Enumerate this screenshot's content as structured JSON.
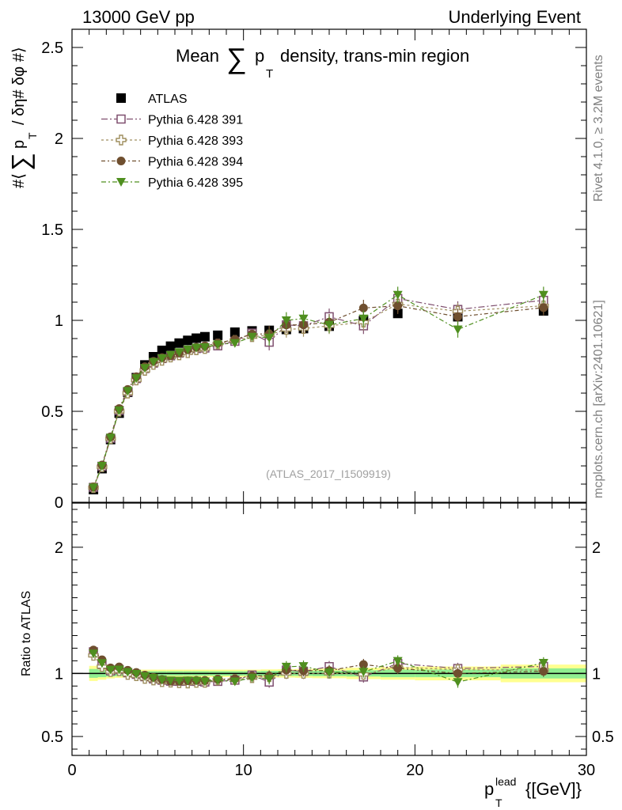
{
  "header": {
    "energy": "13000 GeV pp",
    "process": "Underlying Event",
    "plot_title_prefix": "Mean",
    "plot_title_sum": "∑",
    "plot_title_p": "p",
    "plot_title_sub": "T",
    "plot_title_suffix": "density, trans-min region",
    "watermark": "(ATLAS_2017_I1509919)"
  },
  "side_text": {
    "rivet": "Rivet 4.1.0, ≥ 3.2M events",
    "mcplots": "mcplots.cern.ch [arXiv:2401.10621]"
  },
  "colors": {
    "atlas": "#000000",
    "p391": "#7f4f6f",
    "p393": "#9f8f5f",
    "p394": "#6f4f2f",
    "p395": "#4f8f1f",
    "band_green": "#90ee90",
    "band_yellow": "#ffff90"
  },
  "chart_data": {
    "type": "scatter",
    "title": "Mean ∑ pT density, trans-min region",
    "ylabel_main_parts": [
      "#⟨",
      "∑",
      "p",
      "T",
      "/ δη# δφ #⟩"
    ],
    "ylabel_ratio": "Ratio to ATLAS",
    "xlabel_p": "p",
    "xlabel_sup": "lead",
    "xlabel_sub": "T",
    "xlabel_unit": "{[GeV]}",
    "xlim": [
      0,
      30
    ],
    "ylim_main": [
      0,
      2.6
    ],
    "ylim_ratio": [
      0.35,
      2.35
    ],
    "x_ticks": [
      "0",
      "10",
      "20",
      "30"
    ],
    "y_ticks_main": [
      "0",
      "0.5",
      "1",
      "1.5",
      "2",
      "2.5"
    ],
    "y_ticks_ratio": [
      "0.5",
      "1",
      "2"
    ],
    "x": [
      1.25,
      1.75,
      2.25,
      2.75,
      3.25,
      3.75,
      4.25,
      4.75,
      5.25,
      5.75,
      6.25,
      6.75,
      7.25,
      7.75,
      8.5,
      9.5,
      10.5,
      11.5,
      12.5,
      13.5,
      15.0,
      17.0,
      19.0,
      22.5,
      27.5
    ],
    "series": [
      {
        "name": "ATLAS",
        "key": "atlas",
        "marker": "square-filled",
        "values": [
          0.07,
          0.185,
          0.345,
          0.49,
          0.605,
          0.685,
          0.755,
          0.8,
          0.835,
          0.858,
          0.875,
          0.89,
          0.902,
          0.91,
          0.918,
          0.935,
          0.942,
          0.945,
          0.95,
          0.955,
          0.968,
          0.998,
          1.038,
          1.02,
          1.052
        ]
      },
      {
        "name": "Pythia 6.428 391",
        "key": "p391",
        "marker": "square-open",
        "values": [
          0.082,
          0.198,
          0.352,
          0.505,
          0.608,
          0.68,
          0.735,
          0.765,
          0.79,
          0.805,
          0.82,
          0.835,
          0.845,
          0.848,
          0.86,
          0.885,
          0.93,
          0.88,
          0.975,
          0.97,
          1.02,
          0.97,
          1.12,
          1.06,
          1.11
        ]
      },
      {
        "name": "Pythia 6.428 393",
        "key": "p393",
        "marker": "cross-open",
        "values": [
          0.08,
          0.195,
          0.35,
          0.5,
          0.6,
          0.672,
          0.725,
          0.758,
          0.78,
          0.798,
          0.81,
          0.822,
          0.838,
          0.845,
          0.87,
          0.89,
          0.91,
          0.92,
          0.95,
          0.955,
          0.97,
          0.99,
          1.09,
          1.05,
          1.08
        ]
      },
      {
        "name": "Pythia 6.428 394",
        "key": "p394",
        "marker": "circle-filled",
        "values": [
          0.083,
          0.205,
          0.36,
          0.515,
          0.62,
          0.69,
          0.745,
          0.775,
          0.795,
          0.805,
          0.82,
          0.838,
          0.852,
          0.86,
          0.875,
          0.895,
          0.925,
          0.925,
          0.975,
          0.975,
          0.99,
          1.068,
          1.08,
          1.02,
          1.07
        ]
      },
      {
        "name": "Pythia 6.428 395",
        "key": "p395",
        "marker": "triangle-down-filled",
        "values": [
          0.081,
          0.2,
          0.355,
          0.505,
          0.612,
          0.682,
          0.738,
          0.772,
          0.792,
          0.81,
          0.825,
          0.84,
          0.85,
          0.852,
          0.868,
          0.875,
          0.91,
          0.905,
          1.0,
          1.01,
          0.975,
          1.01,
          1.14,
          0.95,
          1.14
        ]
      }
    ],
    "ratio_band": {
      "x_edges": [
        1.0,
        1.5,
        2.0,
        2.5,
        3.0,
        3.5,
        4.0,
        4.5,
        5.0,
        5.5,
        6.0,
        6.5,
        7.0,
        7.5,
        8.0,
        9.0,
        10.0,
        11.0,
        12.0,
        13.0,
        14.0,
        16.0,
        18.0,
        20.0,
        25.0,
        30.0
      ],
      "green": [
        0.035,
        0.03,
        0.025,
        0.022,
        0.02,
        0.02,
        0.018,
        0.018,
        0.018,
        0.018,
        0.018,
        0.018,
        0.018,
        0.018,
        0.018,
        0.018,
        0.018,
        0.02,
        0.02,
        0.02,
        0.022,
        0.025,
        0.03,
        0.03,
        0.04
      ],
      "yellow": [
        0.06,
        0.05,
        0.04,
        0.035,
        0.032,
        0.03,
        0.03,
        0.03,
        0.03,
        0.03,
        0.03,
        0.03,
        0.03,
        0.03,
        0.03,
        0.03,
        0.03,
        0.032,
        0.033,
        0.035,
        0.038,
        0.045,
        0.05,
        0.055,
        0.07
      ]
    }
  }
}
